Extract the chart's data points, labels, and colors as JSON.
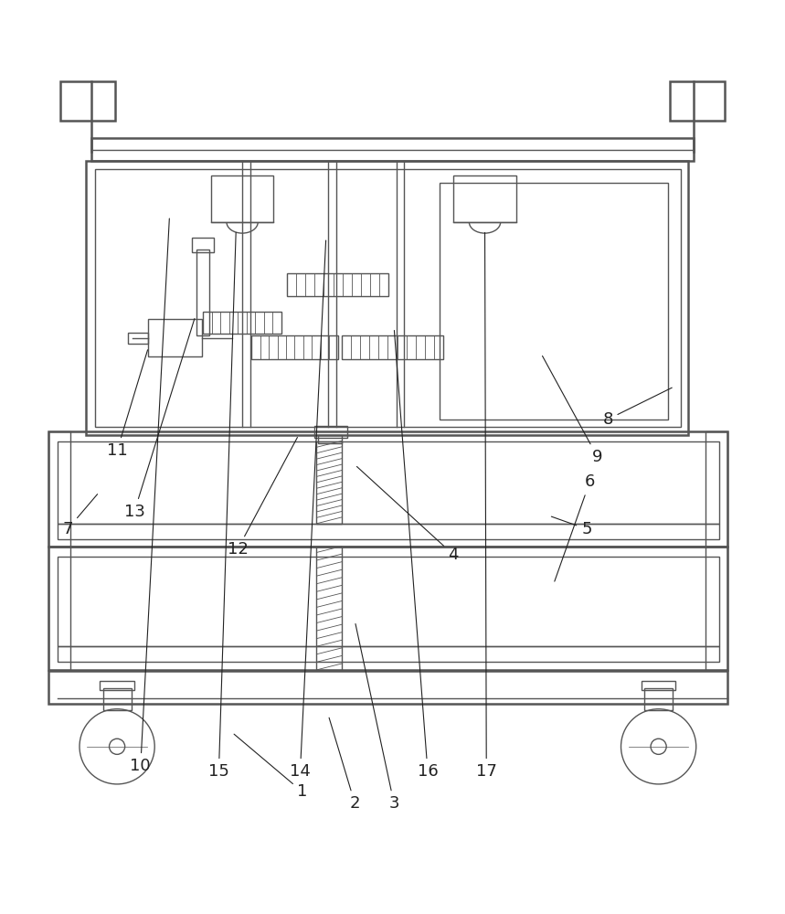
{
  "bg_color": "#ffffff",
  "lc": "#555555",
  "lw": 1.0,
  "tlw": 1.8,
  "fig_width": 8.59,
  "fig_height": 10.0,
  "annotations": {
    "1": {
      "lp": [
        0.385,
        0.072
      ],
      "ae": [
        0.295,
        0.148
      ]
    },
    "2": {
      "lp": [
        0.452,
        0.057
      ],
      "ae": [
        0.418,
        0.17
      ]
    },
    "3": {
      "lp": [
        0.502,
        0.057
      ],
      "ae": [
        0.452,
        0.29
      ]
    },
    "4": {
      "lp": [
        0.578,
        0.375
      ],
      "ae": [
        0.452,
        0.49
      ]
    },
    "5": {
      "lp": [
        0.748,
        0.408
      ],
      "ae": [
        0.7,
        0.425
      ]
    },
    "6": {
      "lp": [
        0.752,
        0.468
      ],
      "ae": [
        0.706,
        0.338
      ]
    },
    "7": {
      "lp": [
        0.085,
        0.408
      ],
      "ae": [
        0.125,
        0.455
      ]
    },
    "8": {
      "lp": [
        0.775,
        0.548
      ],
      "ae": [
        0.86,
        0.59
      ]
    },
    "9": {
      "lp": [
        0.762,
        0.5
      ],
      "ae": [
        0.69,
        0.632
      ]
    },
    "10": {
      "lp": [
        0.178,
        0.105
      ],
      "ae": [
        0.215,
        0.808
      ]
    },
    "11": {
      "lp": [
        0.148,
        0.508
      ],
      "ae": [
        0.188,
        0.64
      ]
    },
    "12": {
      "lp": [
        0.302,
        0.382
      ],
      "ae": [
        0.38,
        0.528
      ]
    },
    "13": {
      "lp": [
        0.17,
        0.43
      ],
      "ae": [
        0.248,
        0.68
      ]
    },
    "14": {
      "lp": [
        0.382,
        0.098
      ],
      "ae": [
        0.415,
        0.78
      ]
    },
    "15": {
      "lp": [
        0.278,
        0.098
      ],
      "ae": [
        0.3,
        0.79
      ]
    },
    "16": {
      "lp": [
        0.545,
        0.098
      ],
      "ae": [
        0.502,
        0.665
      ]
    },
    "17": {
      "lp": [
        0.62,
        0.098
      ],
      "ae": [
        0.618,
        0.79
      ]
    }
  }
}
